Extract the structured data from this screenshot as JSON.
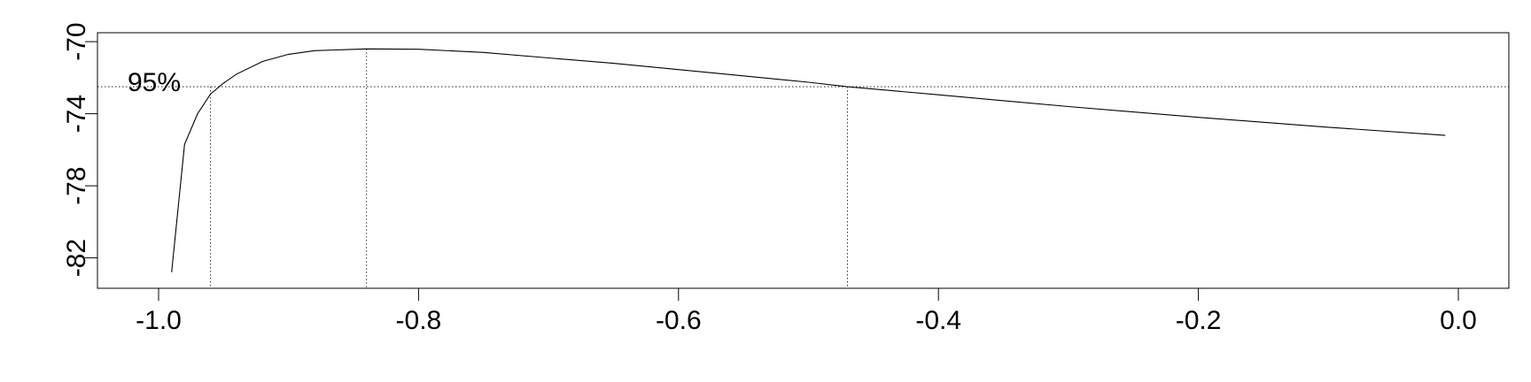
{
  "chart_data": {
    "type": "line",
    "title": "",
    "xlabel": "",
    "ylabel": "",
    "xlim": [
      -1.0,
      0.0
    ],
    "ylim": [
      -83.0,
      -69.7
    ],
    "x_ticks": [
      -1.0,
      -0.8,
      -0.6,
      -0.4,
      -0.2,
      0.0
    ],
    "x_tick_labels": [
      "-1.0",
      "-0.8",
      "-0.6",
      "-0.4",
      "-0.2",
      "0.0"
    ],
    "y_ticks": [
      -82,
      -78,
      -74,
      -70
    ],
    "y_tick_labels": [
      "-82",
      "-78",
      "-74",
      "-70"
    ],
    "grid": false,
    "series": [
      {
        "x": [
          -0.99,
          -0.98,
          -0.97,
          -0.96,
          -0.95,
          -0.94,
          -0.92,
          -0.9,
          -0.88,
          -0.86,
          -0.84,
          -0.8,
          -0.75,
          -0.7,
          -0.65,
          -0.6,
          -0.55,
          -0.5,
          -0.47,
          -0.4,
          -0.3,
          -0.2,
          -0.1,
          -0.01
        ],
        "y": [
          -82.8,
          -75.7,
          -74.0,
          -72.9,
          -72.3,
          -71.8,
          -71.1,
          -70.7,
          -70.5,
          -70.45,
          -70.4,
          -70.42,
          -70.6,
          -70.9,
          -71.2,
          -71.55,
          -71.9,
          -72.25,
          -72.5,
          -72.95,
          -73.6,
          -74.2,
          -74.75,
          -75.2
        ]
      }
    ],
    "reference_lines": {
      "horizontal_y": -72.5,
      "vertical_x": [
        -0.96,
        -0.84,
        -0.47
      ]
    },
    "annotations": [
      {
        "text": "95%",
        "x": -1.0,
        "y": -72.5
      }
    ]
  }
}
